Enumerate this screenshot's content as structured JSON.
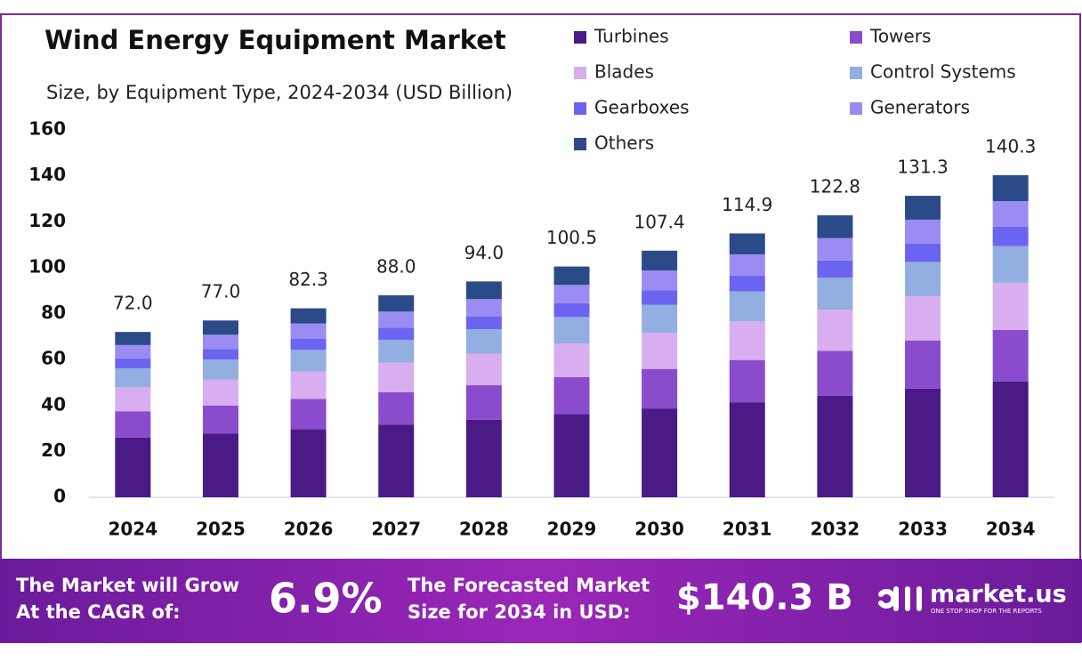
{
  "chart_data": {
    "type": "stacked_bar",
    "title": "Wind Energy Equipment Market",
    "subtitle": "Size, by Equipment Type, 2024-2034 (USD Billion)",
    "categories": [
      "2024",
      "2025",
      "2026",
      "2027",
      "2028",
      "2029",
      "2030",
      "2031",
      "2032",
      "2033",
      "2034"
    ],
    "series": [
      {
        "name": "Turbines",
        "color": "#4a1a86",
        "values": [
          26.0,
          27.7,
          29.6,
          31.7,
          33.8,
          36.2,
          38.7,
          41.4,
          44.2,
          47.3,
          50.5
        ]
      },
      {
        "name": "Towers",
        "color": "#8a4ccc",
        "values": [
          11.5,
          12.3,
          13.2,
          14.1,
          15.0,
          16.1,
          17.2,
          18.4,
          19.6,
          21.0,
          22.4
        ]
      },
      {
        "name": "Blades",
        "color": "#d8aef0",
        "values": [
          10.5,
          11.2,
          12.0,
          12.8,
          13.7,
          14.7,
          15.7,
          16.8,
          17.9,
          19.2,
          20.5
        ]
      },
      {
        "name": "Control Systems",
        "color": "#93aee0",
        "values": [
          8.2,
          8.8,
          9.4,
          10.0,
          10.7,
          11.5,
          12.2,
          13.1,
          14.0,
          15.0,
          16.0
        ]
      },
      {
        "name": "Gearboxes",
        "color": "#6b64f0",
        "values": [
          4.3,
          4.6,
          4.9,
          5.3,
          5.6,
          6.0,
          6.4,
          6.9,
          7.4,
          7.9,
          8.4
        ]
      },
      {
        "name": "Generators",
        "color": "#9a8cf2",
        "values": [
          5.8,
          6.2,
          6.6,
          7.0,
          7.5,
          8.0,
          8.6,
          9.2,
          9.8,
          10.5,
          11.2
        ]
      },
      {
        "name": "Others",
        "color": "#2b4a88",
        "values": [
          5.7,
          6.2,
          6.6,
          7.1,
          7.7,
          8.0,
          8.6,
          9.1,
          9.9,
          10.4,
          11.3
        ]
      }
    ],
    "totals": [
      72.0,
      77.0,
      82.3,
      88.0,
      94.0,
      100.5,
      107.4,
      114.9,
      122.8,
      131.3,
      140.3
    ],
    "total_labels": [
      "72.0",
      "77.0",
      "82.3",
      "88.0",
      "94.0",
      "100.5",
      "107.4",
      "114.9",
      "122.8",
      "131.3",
      "140.3"
    ],
    "ylim": [
      0,
      160
    ],
    "yticks": [
      0,
      20,
      40,
      60,
      80,
      100,
      120,
      140,
      160
    ],
    "grid": false
  },
  "footer": {
    "cagr_text": [
      "The Market will Grow",
      "At the CAGR of:"
    ],
    "cagr": "6.9%",
    "forecast_text": [
      "The Forecasted Market",
      "Size for 2034 in USD:"
    ],
    "forecast": "$140.3 B",
    "brand": "market.us",
    "tagline": "ONE STOP SHOP FOR THE REPORTS"
  }
}
